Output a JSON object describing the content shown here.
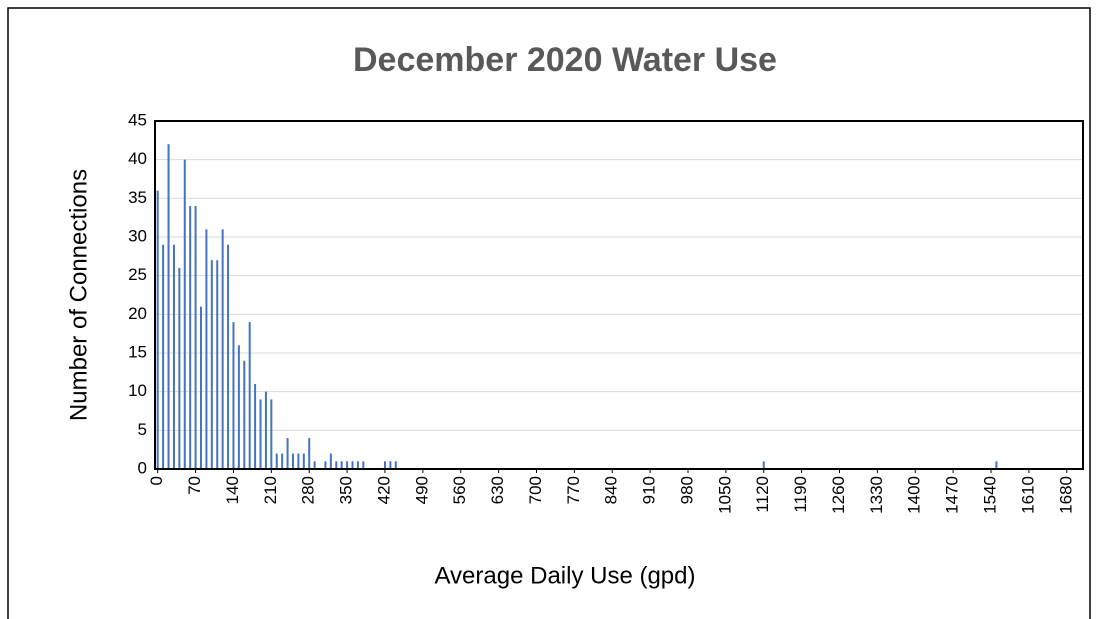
{
  "chart_data": {
    "type": "bar",
    "title": "December 2020 Water Use",
    "xlabel": "Average Daily Use (gpd)",
    "ylabel": "Number of Connections",
    "x": [
      0,
      10,
      20,
      30,
      40,
      50,
      60,
      70,
      80,
      90,
      100,
      110,
      120,
      130,
      140,
      150,
      160,
      170,
      180,
      190,
      200,
      210,
      220,
      230,
      240,
      250,
      260,
      270,
      280,
      290,
      310,
      320,
      330,
      340,
      350,
      360,
      370,
      380,
      420,
      430,
      440,
      1120,
      1550
    ],
    "values": [
      36,
      29,
      42,
      29,
      26,
      40,
      34,
      34,
      21,
      31,
      27,
      27,
      31,
      29,
      19,
      16,
      14,
      19,
      11,
      9,
      10,
      9,
      2,
      2,
      4,
      2,
      2,
      2,
      4,
      1,
      1,
      2,
      1,
      1,
      1,
      1,
      1,
      1,
      1,
      1,
      1,
      1,
      1
    ],
    "color": "#4472c4",
    "xlim": [
      -5,
      1710
    ],
    "xticks": [
      0,
      70,
      140,
      210,
      280,
      350,
      420,
      490,
      560,
      630,
      700,
      770,
      840,
      910,
      980,
      1050,
      1120,
      1190,
      1260,
      1330,
      1400,
      1470,
      1540,
      1610,
      1680
    ],
    "ylim": [
      0,
      45
    ],
    "yticks": [
      0,
      5,
      10,
      15,
      20,
      25,
      30,
      35,
      40,
      45
    ],
    "grid": true
  }
}
